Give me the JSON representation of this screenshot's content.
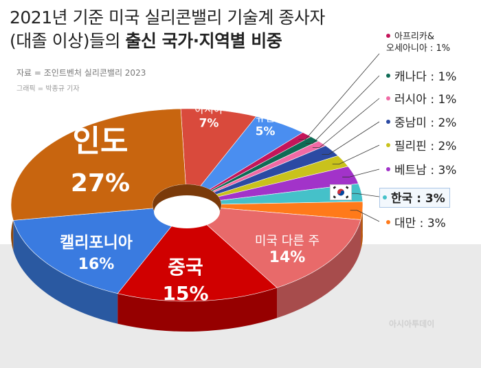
{
  "title": {
    "line1": "2021년 기준 미국 실리콘밸리 기술계 종사자",
    "line2_plain": "(대졸 이상)들의 ",
    "line2_bold": "출신 국가·지역별 비중"
  },
  "source": "자료 = 조인트벤처 실리콘밸리 2023",
  "credit": "그래픽 = 박종규 기자",
  "watermark": "아시아투데이",
  "chart_data": {
    "type": "pie",
    "style": "3d-donut",
    "unit": "%",
    "slices": [
      {
        "label": "그 외 아시아",
        "value": 7,
        "color": "#d94a3c"
      },
      {
        "label": "그 외 유럽",
        "value": 5,
        "color": "#4a8ef0"
      },
      {
        "label": "아프리카& 오세아니아",
        "value": 1,
        "color": "#c4155a"
      },
      {
        "label": "캐나다",
        "value": 1,
        "color": "#0e6b55"
      },
      {
        "label": "러시아",
        "value": 1,
        "color": "#f06aa5"
      },
      {
        "label": "중남미",
        "value": 2,
        "color": "#2b4aa3"
      },
      {
        "label": "필리핀",
        "value": 2,
        "color": "#c9c21c"
      },
      {
        "label": "베트남",
        "value": 3,
        "color": "#a233c9"
      },
      {
        "label": "한국",
        "value": 3,
        "color": "#45c1c9"
      },
      {
        "label": "대만",
        "value": 3,
        "color": "#ff7a1a"
      },
      {
        "label": "미국 다른 주",
        "value": 14,
        "color": "#e86a6a"
      },
      {
        "label": "중국",
        "value": 15,
        "color": "#d00000"
      },
      {
        "label": "캘리포니아",
        "value": 16,
        "color": "#3a7be0"
      },
      {
        "label": "인도",
        "value": 27,
        "color": "#c8650f"
      }
    ]
  },
  "labels": {
    "other_asia": {
      "name": "그 외\n아시아",
      "pct": "7%"
    },
    "other_europe": {
      "name": "그 외\n유럽",
      "pct": "5%"
    },
    "us_other": {
      "name": "미국 다른 주",
      "pct": "14%"
    },
    "china": {
      "name": "중국",
      "pct": "15%"
    },
    "california": {
      "name": "캘리포니아",
      "pct": "16%"
    },
    "india": {
      "name": "인도",
      "pct": "27%"
    }
  },
  "legend": [
    {
      "text": "아프리카&\n오세아니아 : 1%",
      "color": "#c4155a"
    },
    {
      "text": "캐나다 : 1%",
      "color": "#0e6b55"
    },
    {
      "text": "러시아 : 1%",
      "color": "#f06aa5"
    },
    {
      "text": "중남미 : 2%",
      "color": "#2b4aa3"
    },
    {
      "text": "필리핀 : 2%",
      "color": "#c9c21c"
    },
    {
      "text": "베트남 : 3%",
      "color": "#a233c9"
    },
    {
      "text": "한국 : 3%",
      "color": "#45c1c9"
    },
    {
      "text": "대만 : 3%",
      "color": "#ff7a1a"
    }
  ]
}
